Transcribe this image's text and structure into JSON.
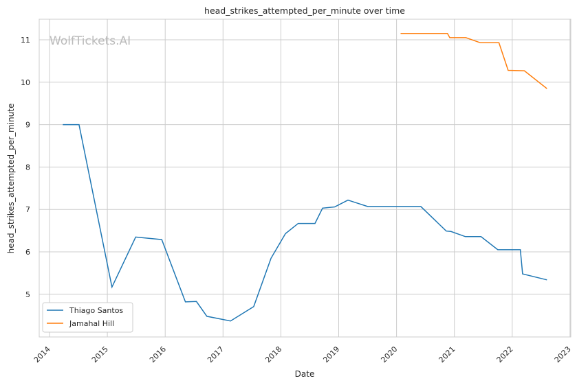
{
  "chart_data": {
    "type": "line",
    "title": "head_strikes_attempted_per_minute over time",
    "xlabel": "Date",
    "ylabel": "head_strikes_attempted_per_minute",
    "watermark": "WolfTickets.AI",
    "xlim": [
      2013.82,
      2023.0
    ],
    "ylim": [
      4.02,
      11.48
    ],
    "x_ticks": [
      "2014",
      "2015",
      "2016",
      "2017",
      "2018",
      "2019",
      "2020",
      "2021",
      "2022",
      "2023"
    ],
    "x_tick_values": [
      2014,
      2015,
      2016,
      2017,
      2018,
      2019,
      2020,
      2021,
      2022,
      2023
    ],
    "y_ticks": [
      5,
      6,
      7,
      8,
      9,
      10,
      11
    ],
    "grid": true,
    "legend_position": "bottom-left",
    "series": [
      {
        "name": "Thiago Santos",
        "color": "#1f77b4",
        "x": [
          2014.23,
          2014.51,
          2015.08,
          2015.49,
          2015.94,
          2016.35,
          2016.54,
          2016.72,
          2017.13,
          2017.53,
          2017.83,
          2018.08,
          2018.3,
          2018.59,
          2018.72,
          2018.93,
          2019.16,
          2019.5,
          2020.42,
          2020.86,
          2020.94,
          2021.19,
          2021.46,
          2021.75,
          2022.14,
          2022.18,
          2022.6
        ],
        "values": [
          9.0,
          9.0,
          5.17,
          6.35,
          6.29,
          4.82,
          4.83,
          4.48,
          4.37,
          4.71,
          5.85,
          6.43,
          6.67,
          6.67,
          7.03,
          7.06,
          7.22,
          7.07,
          7.07,
          6.49,
          6.48,
          6.36,
          6.36,
          6.05,
          6.05,
          5.48,
          5.34
        ]
      },
      {
        "name": "Jamahal Hill",
        "color": "#ff7f0e",
        "x": [
          2020.07,
          2020.88,
          2020.92,
          2021.2,
          2021.45,
          2021.77,
          2021.93,
          2022.21,
          2022.6
        ],
        "values": [
          11.15,
          11.15,
          11.05,
          11.05,
          10.93,
          10.93,
          10.28,
          10.27,
          9.85
        ]
      }
    ]
  }
}
